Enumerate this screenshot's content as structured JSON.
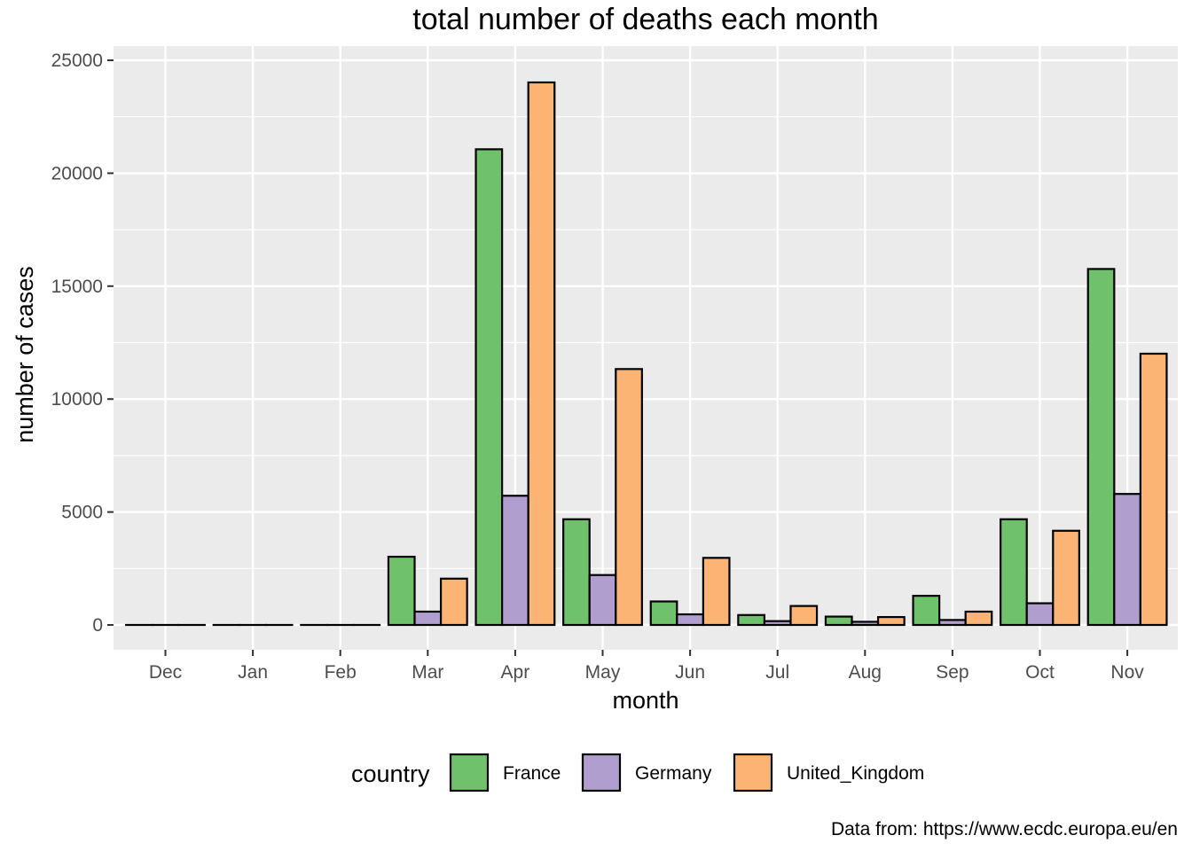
{
  "chart_data": {
    "type": "bar",
    "title": "total number of deaths each month",
    "xlabel": "month",
    "ylabel": "number of cases",
    "caption": "Data from: https://www.ecdc.europa.eu/en",
    "categories": [
      "Dec",
      "Jan",
      "Feb",
      "Mar",
      "Apr",
      "May",
      "Jun",
      "Jul",
      "Aug",
      "Sep",
      "Oct",
      "Nov"
    ],
    "series": [
      {
        "name": "France",
        "color": "#6fc26b",
        "values": [
          0,
          0,
          0,
          3020,
          21060,
          4680,
          1040,
          440,
          370,
          1290,
          4680,
          15760
        ]
      },
      {
        "name": "Germany",
        "color": "#b09fce",
        "values": [
          0,
          0,
          0,
          590,
          5720,
          2210,
          470,
          170,
          140,
          220,
          960,
          5800
        ]
      },
      {
        "name": "United_Kingdom",
        "color": "#fbb474",
        "values": [
          0,
          0,
          0,
          2050,
          24020,
          11330,
          2970,
          840,
          350,
          590,
          4170,
          12010
        ]
      }
    ],
    "ylim": [
      0,
      25000
    ],
    "yticks": [
      0,
      5000,
      10000,
      15000,
      20000,
      25000
    ],
    "grid": true,
    "legend": {
      "title": "country",
      "position": "bottom"
    }
  }
}
